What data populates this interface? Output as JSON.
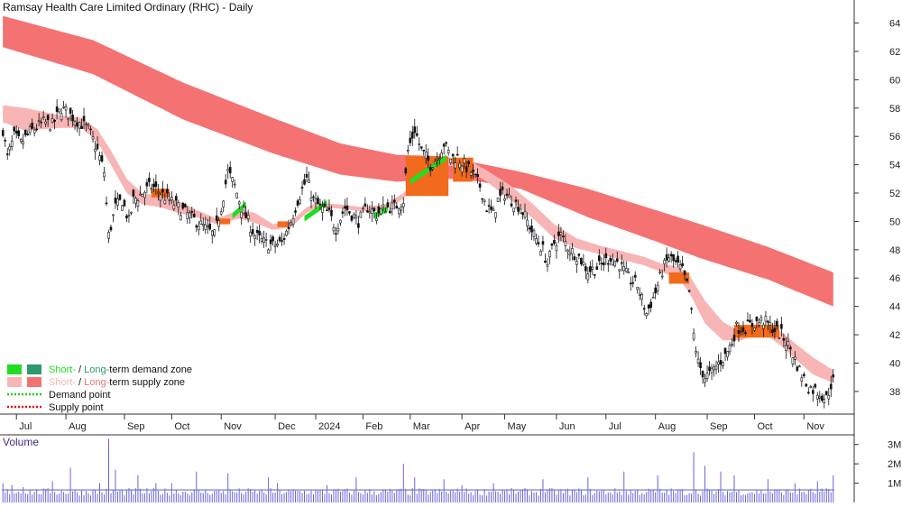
{
  "title": "Ramsay Health Care Limited Ordinary (RHC) - Daily",
  "volume_label": "Volume",
  "colors": {
    "short_demand": "#22dd22",
    "long_demand": "#2e9a6e",
    "short_supply": "#f7b5b5",
    "long_supply": "#f47272",
    "overlap": "#f26a1b",
    "candle": "#111111",
    "volume": "#6666dd",
    "volume_avg": "#7070cc",
    "axis": "#333333"
  },
  "legend": [
    {
      "kind": "demand",
      "prefix": "Short-",
      "sep": " / ",
      "middle": "Long-",
      "suffix": "term demand zone"
    },
    {
      "kind": "supply",
      "prefix": "Short-",
      "sep": " / ",
      "middle": "Long-",
      "suffix": "term supply zone"
    },
    {
      "kind": "demand_point",
      "label": "Demand point",
      "color": "#22cc22"
    },
    {
      "kind": "supply_point",
      "label": "Supply point",
      "color": "#dd1111"
    }
  ],
  "chart_data": {
    "type": "candlestick",
    "ylim": [
      36.4,
      65.5
    ],
    "y_ticks": [
      38,
      40,
      42,
      44,
      46,
      48,
      50,
      52,
      54,
      56,
      58,
      60,
      62,
      64
    ],
    "x_ticks": [
      "Jul",
      "Aug",
      "Sep",
      "Oct",
      "Nov",
      "Dec",
      "2024",
      "Feb",
      "Mar",
      "Apr",
      "May",
      "Jun",
      "Jul",
      "Aug",
      "Sep",
      "Oct",
      "Nov"
    ],
    "x_tick_index": [
      6,
      28,
      54,
      75,
      97,
      121,
      139,
      160,
      181,
      204,
      223,
      246,
      268,
      290,
      313,
      334,
      356
    ],
    "num_bars": 370,
    "price_anchors": [
      [
        0,
        56.5
      ],
      [
        2,
        54.5
      ],
      [
        5,
        56.0
      ],
      [
        8,
        55.5
      ],
      [
        12,
        56.3
      ],
      [
        18,
        57.0
      ],
      [
        22,
        56.8
      ],
      [
        26,
        58.0
      ],
      [
        30,
        57.5
      ],
      [
        34,
        57.0
      ],
      [
        38,
        56.5
      ],
      [
        42,
        55.0
      ],
      [
        45,
        53.5
      ],
      [
        47,
        49.0
      ],
      [
        50,
        51.0
      ],
      [
        53,
        51.5
      ],
      [
        56,
        50.0
      ],
      [
        58,
        51.5
      ],
      [
        62,
        52.0
      ],
      [
        66,
        52.5
      ],
      [
        70,
        52.0
      ],
      [
        74,
        51.5
      ],
      [
        78,
        51.0
      ],
      [
        82,
        50.5
      ],
      [
        86,
        50.0
      ],
      [
        90,
        49.5
      ],
      [
        94,
        49.0
      ],
      [
        97,
        51.0
      ],
      [
        100,
        53.5
      ],
      [
        103,
        52.5
      ],
      [
        106,
        51.0
      ],
      [
        109,
        50.0
      ],
      [
        112,
        49.0
      ],
      [
        116,
        48.5
      ],
      [
        120,
        48.3
      ],
      [
        124,
        48.5
      ],
      [
        128,
        50.0
      ],
      [
        131,
        51.5
      ],
      [
        135,
        53.0
      ],
      [
        138,
        51.5
      ],
      [
        141,
        51.0
      ],
      [
        145,
        50.5
      ],
      [
        148,
        49.5
      ],
      [
        152,
        51.0
      ],
      [
        155,
        50.5
      ],
      [
        158,
        50.0
      ],
      [
        162,
        51.0
      ],
      [
        166,
        50.5
      ],
      [
        170,
        51.0
      ],
      [
        174,
        51.0
      ],
      [
        178,
        51.5
      ],
      [
        180,
        55.0
      ],
      [
        183,
        56.5
      ],
      [
        186,
        55.0
      ],
      [
        190,
        54.0
      ],
      [
        193,
        54.5
      ],
      [
        196,
        55.5
      ],
      [
        199,
        54.5
      ],
      [
        202,
        54.5
      ],
      [
        205,
        54.0
      ],
      [
        208,
        53.5
      ],
      [
        212,
        52.5
      ],
      [
        215,
        51.0
      ],
      [
        218,
        50.5
      ],
      [
        220,
        51.5
      ],
      [
        223,
        52.0
      ],
      [
        226,
        51.5
      ],
      [
        230,
        51.0
      ],
      [
        233,
        50.0
      ],
      [
        236,
        49.0
      ],
      [
        240,
        48.0
      ],
      [
        242,
        47.0
      ],
      [
        245,
        48.5
      ],
      [
        248,
        49.0
      ],
      [
        252,
        48.0
      ],
      [
        256,
        47.5
      ],
      [
        260,
        46.5
      ],
      [
        265,
        46.8
      ],
      [
        270,
        47.5
      ],
      [
        274,
        47.0
      ],
      [
        278,
        46.0
      ],
      [
        282,
        45.5
      ],
      [
        286,
        43.5
      ],
      [
        290,
        45.0
      ],
      [
        293,
        46.5
      ],
      [
        296,
        47.5
      ],
      [
        299,
        47.0
      ],
      [
        302,
        46.5
      ],
      [
        305,
        45.0
      ],
      [
        307,
        42.0
      ],
      [
        309,
        40.0
      ],
      [
        312,
        39.0
      ],
      [
        315,
        39.3
      ],
      [
        318,
        40.0
      ],
      [
        321,
        40.5
      ],
      [
        324,
        41.5
      ],
      [
        326,
        42.5
      ],
      [
        330,
        42.5
      ],
      [
        334,
        42.8
      ],
      [
        338,
        43.0
      ],
      [
        342,
        42.5
      ],
      [
        346,
        42.0
      ],
      [
        350,
        41.0
      ],
      [
        354,
        39.5
      ],
      [
        358,
        38.3
      ],
      [
        362,
        38.0
      ],
      [
        366,
        37.5
      ],
      [
        368,
        38.5
      ],
      [
        369,
        38.7
      ]
    ],
    "long_supply_zone": [
      [
        0,
        64.5,
        62.3
      ],
      [
        40,
        62.8,
        60.4
      ],
      [
        80,
        59.8,
        57.2
      ],
      [
        120,
        57.3,
        54.8
      ],
      [
        150,
        55.5,
        53.3
      ],
      [
        175,
        54.7,
        52.8
      ],
      [
        195,
        54.6,
        53.0
      ],
      [
        205,
        54.3,
        53.0
      ],
      [
        230,
        53.5,
        52.3
      ],
      [
        260,
        52.3,
        50.3
      ],
      [
        290,
        50.8,
        48.6
      ],
      [
        310,
        49.8,
        47.4
      ],
      [
        340,
        48.2,
        45.9
      ],
      [
        369,
        46.4,
        44.0
      ]
    ],
    "short_supply_zone": [
      [
        0,
        58.2,
        57.0
      ],
      [
        10,
        58.0,
        56.4
      ],
      [
        25,
        57.5,
        56.6
      ],
      [
        35,
        57.3,
        56.6
      ],
      [
        42,
        56.5,
        55.6
      ],
      [
        48,
        55.0,
        54.0
      ],
      [
        55,
        53.0,
        52.0
      ],
      [
        62,
        52.0,
        51.2
      ],
      [
        70,
        51.8,
        51.0
      ],
      [
        78,
        51.4,
        50.6
      ],
      [
        86,
        50.8,
        50.3
      ],
      [
        95,
        50.2,
        49.8
      ],
      [
        105,
        50.8,
        50.2
      ],
      [
        112,
        50.6,
        49.9
      ],
      [
        120,
        49.8,
        49.4
      ],
      [
        128,
        50.0,
        49.6
      ],
      [
        135,
        51.0,
        50.6
      ],
      [
        140,
        51.3,
        51.0
      ],
      [
        150,
        51.2,
        50.9
      ],
      [
        160,
        51.0,
        50.7
      ],
      [
        170,
        51.2,
        50.8
      ],
      [
        178,
        52.0,
        51.6
      ],
      [
        186,
        53.4,
        53.0
      ],
      [
        195,
        54.4,
        54.0
      ],
      [
        205,
        54.5,
        53.8
      ],
      [
        215,
        53.6,
        52.8
      ],
      [
        225,
        52.6,
        51.6
      ],
      [
        235,
        51.3,
        50.3
      ],
      [
        245,
        49.8,
        48.8
      ],
      [
        255,
        48.8,
        48.1
      ],
      [
        265,
        48.3,
        47.7
      ],
      [
        275,
        47.9,
        47.3
      ],
      [
        285,
        47.5,
        46.9
      ],
      [
        293,
        47.0,
        46.4
      ],
      [
        300,
        46.8,
        46.0
      ],
      [
        305,
        46.2,
        45.0
      ],
      [
        312,
        44.4,
        42.8
      ],
      [
        320,
        42.9,
        41.6
      ],
      [
        328,
        42.2,
        41.6
      ],
      [
        334,
        42.5,
        42.0
      ],
      [
        340,
        42.4,
        41.9
      ],
      [
        346,
        42.2,
        41.2
      ],
      [
        352,
        41.4,
        40.3
      ],
      [
        360,
        40.4,
        39.2
      ],
      [
        369,
        39.5,
        38.6
      ]
    ],
    "orange_zones": [
      [
        66,
        74,
        52.3,
        51.7
      ],
      [
        95,
        101,
        50.2,
        49.8
      ],
      [
        122,
        127,
        50.0,
        49.6
      ],
      [
        179,
        198,
        54.6,
        51.8
      ],
      [
        200,
        209,
        54.5,
        52.8
      ],
      [
        296,
        305,
        46.4,
        45.6
      ],
      [
        325,
        345,
        42.7,
        41.8
      ]
    ],
    "green_zones": [
      [
        102,
        108,
        51.2,
        50.4
      ],
      [
        134,
        144,
        51.3,
        50.2
      ],
      [
        165,
        171,
        50.9,
        50.4
      ],
      [
        181,
        197,
        54.5,
        52.8
      ]
    ],
    "volume_ylim": [
      0,
      3.5
    ],
    "volume_ticks": [
      1,
      2,
      3
    ],
    "volume_tick_labels": [
      "1M",
      "2M",
      "3M"
    ],
    "volume_avg": 0.65,
    "volume_spikes": [
      [
        0,
        1.0
      ],
      [
        4,
        0.9
      ],
      [
        9,
        0.8
      ],
      [
        22,
        1.1
      ],
      [
        30,
        1.8
      ],
      [
        43,
        1.0
      ],
      [
        47,
        3.3
      ],
      [
        50,
        1.7
      ],
      [
        60,
        1.4
      ],
      [
        68,
        1.0
      ],
      [
        75,
        1.0
      ],
      [
        86,
        1.6
      ],
      [
        100,
        1.5
      ],
      [
        118,
        1.3
      ],
      [
        122,
        1.0
      ],
      [
        144,
        0.9
      ],
      [
        157,
        1.3
      ],
      [
        178,
        2.0
      ],
      [
        183,
        1.3
      ],
      [
        196,
        1.2
      ],
      [
        204,
        0.9
      ],
      [
        218,
        1.0
      ],
      [
        240,
        1.2
      ],
      [
        260,
        1.3
      ],
      [
        276,
        1.6
      ],
      [
        291,
        1.4
      ],
      [
        307,
        2.6
      ],
      [
        312,
        1.9
      ],
      [
        319,
        1.6
      ],
      [
        325,
        1.4
      ],
      [
        340,
        1.2
      ],
      [
        352,
        1.0
      ],
      [
        362,
        1.1
      ],
      [
        369,
        1.4
      ]
    ]
  }
}
